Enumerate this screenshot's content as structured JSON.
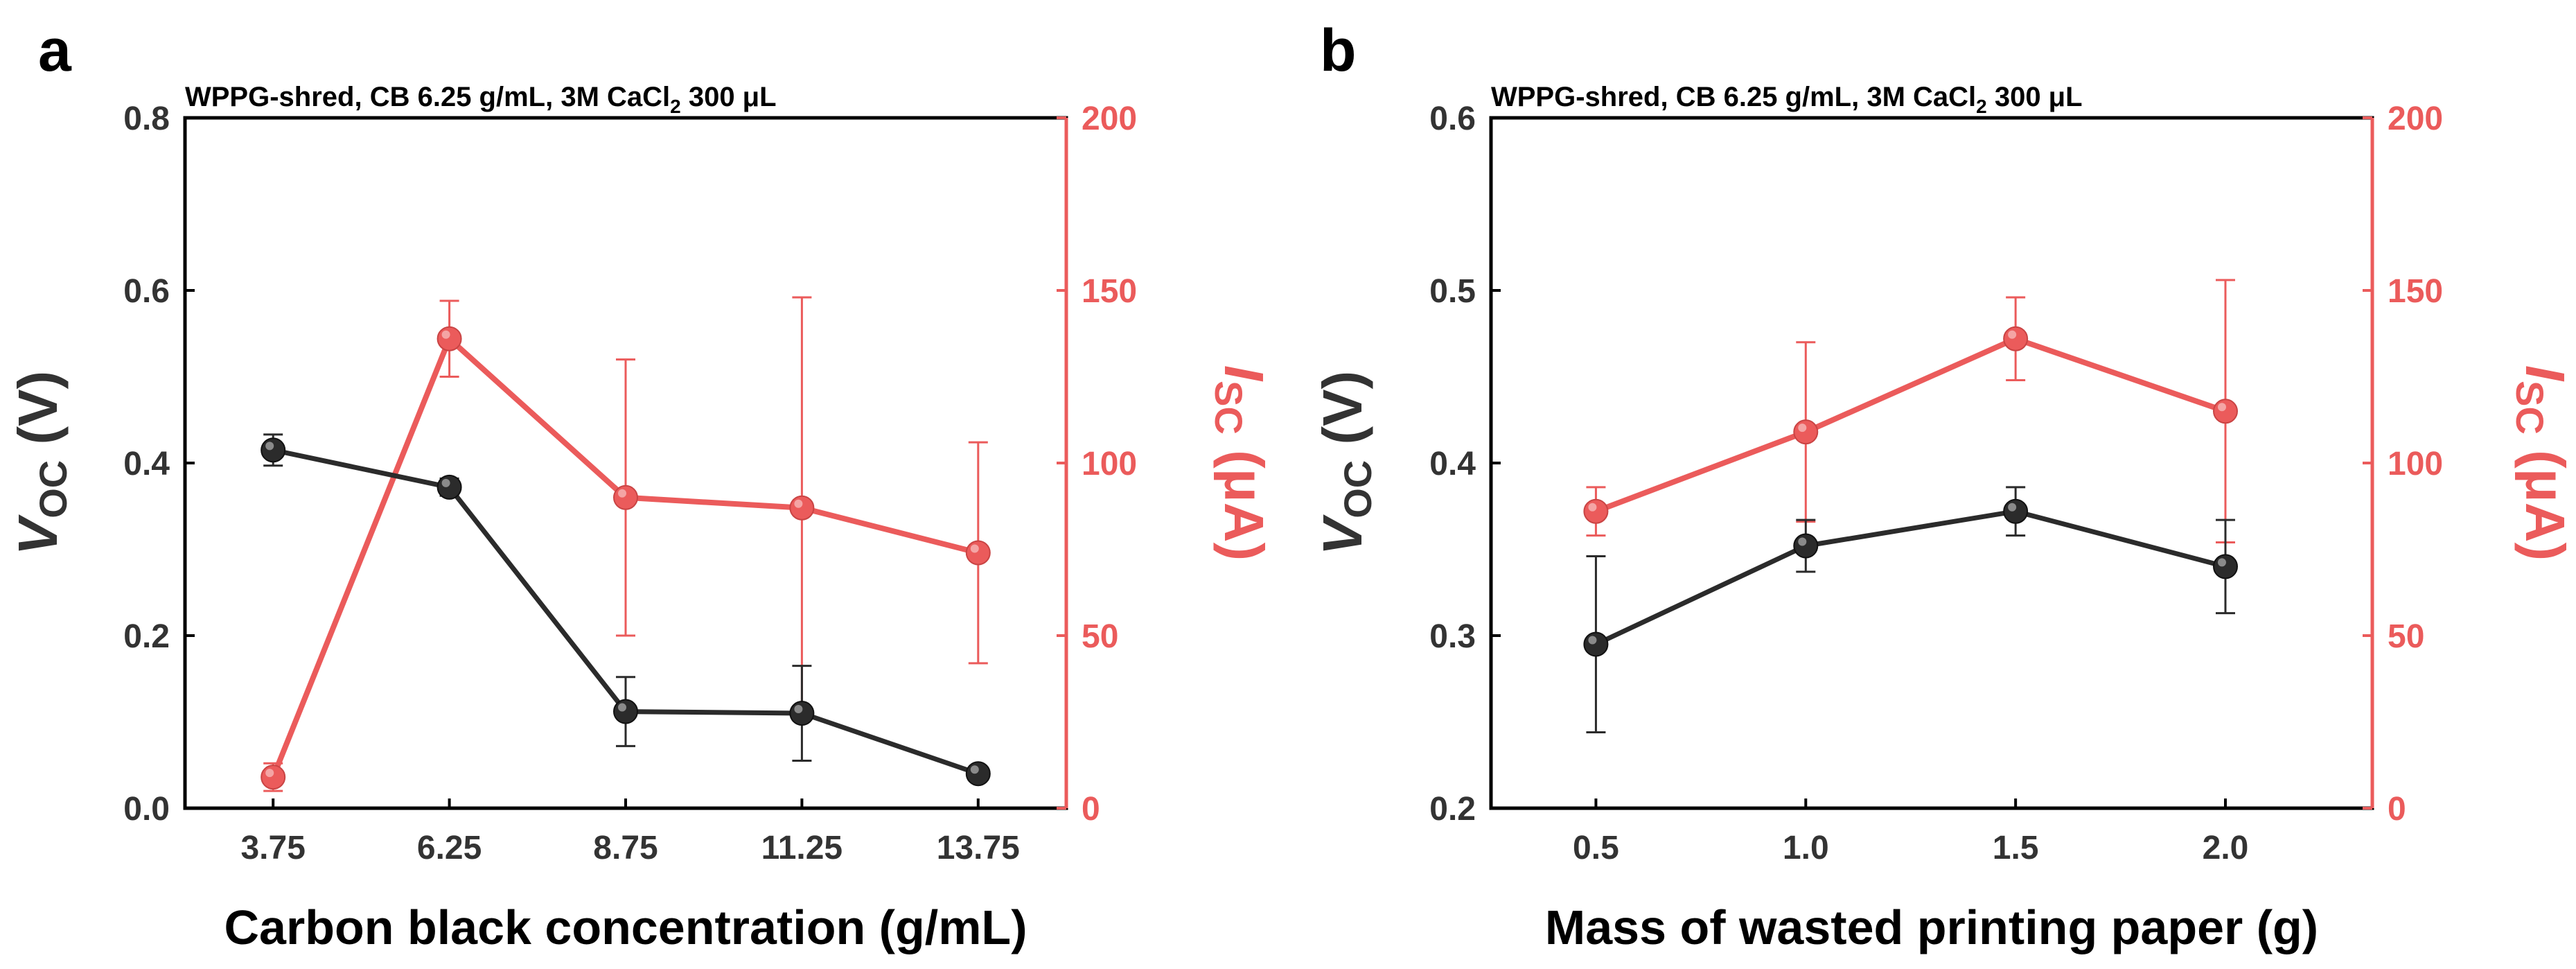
{
  "colors": {
    "voc": "#2b2b2b",
    "isc": "#eb5b5b",
    "axis": "#000000",
    "tick_left": "#333333"
  },
  "chart_data": [
    {
      "panel": "a",
      "type": "line",
      "title_prefix": "WPPG-shred, CB 6.25 g/mL, 3M CaCl",
      "title_sub": "2",
      "title_suffix": " 300 μL",
      "xlabel": "Carbon black concentration (g/mL)",
      "ylabel_main": "V",
      "ylabel_sub": "OC",
      "ylabel_unit": " (V)",
      "y2label_main": "I",
      "y2label_sub": "SC",
      "y2label_unit": " (μA)",
      "categories": [
        "3.75",
        "6.25",
        "8.75",
        "11.25",
        "13.75"
      ],
      "xlim": [
        0.5,
        5.5
      ],
      "ylim": [
        0,
        0.8
      ],
      "y_ticks": [
        "0.0",
        "0.2",
        "0.4",
        "0.6",
        "0.8"
      ],
      "y2lim": [
        0,
        200
      ],
      "y2_ticks": [
        "0",
        "50",
        "100",
        "150",
        "200"
      ],
      "series": [
        {
          "name": "Voc",
          "axis": "left",
          "values": [
            0.415,
            0.372,
            0.112,
            0.11,
            0.04
          ],
          "errors": [
            0.018,
            0.01,
            0.04,
            0.055,
            0.005
          ]
        },
        {
          "name": "Isc",
          "axis": "right",
          "values": [
            9,
            136,
            90,
            87,
            74
          ],
          "errors": [
            4,
            11,
            40,
            61,
            32
          ]
        }
      ]
    },
    {
      "panel": "b",
      "type": "line",
      "title_prefix": "WPPG-shred, CB 6.25 g/mL, 3M CaCl",
      "title_sub": "2",
      "title_suffix": " 300 μL",
      "xlabel": "Mass of wasted printing paper (g)",
      "ylabel_main": "V",
      "ylabel_sub": "OC",
      "ylabel_unit": " (V)",
      "y2label_main": "I",
      "y2label_sub": "SC",
      "y2label_unit": " (μA)",
      "categories": [
        "0.5",
        "1.0",
        "1.5",
        "2.0"
      ],
      "xlim": [
        0.5,
        4.7
      ],
      "ylim": [
        0.2,
        0.6
      ],
      "y_ticks": [
        "0.2",
        "0.3",
        "0.4",
        "0.5",
        "0.6"
      ],
      "y2lim": [
        0,
        200
      ],
      "y2_ticks": [
        "0",
        "50",
        "100",
        "150",
        "200"
      ],
      "series": [
        {
          "name": "Voc",
          "axis": "left",
          "values": [
            0.295,
            0.352,
            0.372,
            0.34
          ],
          "errors": [
            0.051,
            0.015,
            0.014,
            0.027
          ]
        },
        {
          "name": "Isc",
          "axis": "right",
          "values": [
            86,
            109,
            136,
            115
          ],
          "errors": [
            7,
            26,
            12,
            38
          ]
        }
      ]
    }
  ]
}
